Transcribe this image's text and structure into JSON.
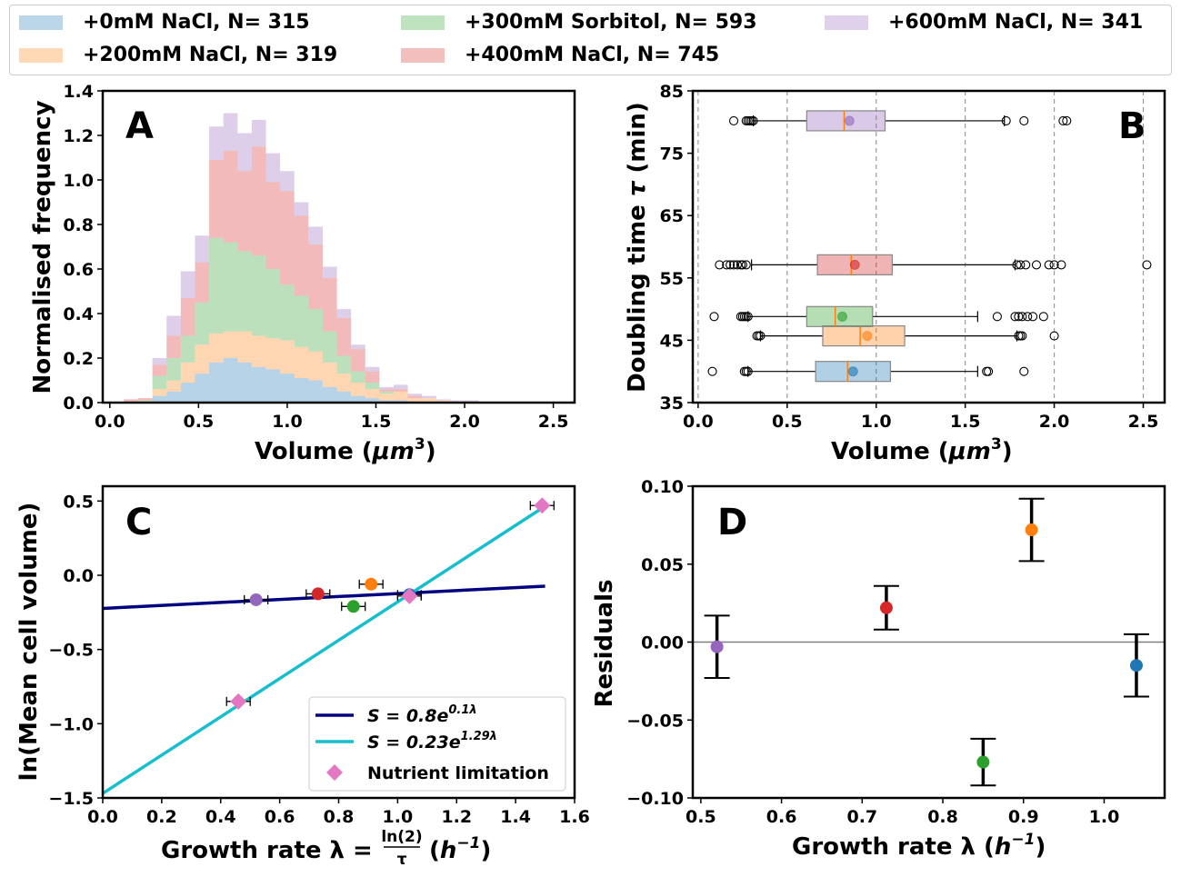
{
  "legend": {
    "entries": [
      {
        "label": "+0mM NaCl, N= 315",
        "color": "#1f77b4"
      },
      {
        "label": "+200mM NaCl, N= 319",
        "color": "#ff7f0e"
      },
      {
        "label": "+300mM Sorbitol, N= 593",
        "color": "#2ca02c"
      },
      {
        "label": "+400mM NaCl, N= 745",
        "color": "#d62728"
      },
      {
        "label": "+600mM NaCl, N= 341",
        "color": "#9467bd"
      }
    ]
  },
  "chart_data": [
    {
      "panel": "A",
      "type": "bar",
      "stacked": true,
      "histtype": "stepfilled",
      "xlabel": "Volume ($\\mu m^3$)",
      "ylabel": "Normalised frequency",
      "xlim": [
        -0.04,
        2.62
      ],
      "ylim": [
        0,
        1.4
      ],
      "xticks": [
        "0.0",
        "0.5",
        "1.0",
        "1.5",
        "2.0",
        "2.5"
      ],
      "yticks": [
        "0.0",
        "0.2",
        "0.4",
        "0.6",
        "0.8",
        "1.0",
        "1.2",
        "1.4"
      ],
      "bin_edges": [
        0.08,
        0.16,
        0.24,
        0.32,
        0.4,
        0.48,
        0.56,
        0.64,
        0.72,
        0.8,
        0.88,
        0.96,
        1.04,
        1.12,
        1.2,
        1.28,
        1.36,
        1.44,
        1.52,
        1.6,
        1.68,
        1.76,
        1.84,
        1.92,
        2.0,
        2.08
      ],
      "series": [
        {
          "name": "+0mM NaCl, N= 315",
          "values": [
            0,
            0,
            0.03,
            0.05,
            0.09,
            0.13,
            0.18,
            0.2,
            0.18,
            0.16,
            0.15,
            0.13,
            0.11,
            0.1,
            0.07,
            0.05,
            0.03,
            0.02,
            0.01,
            0.01,
            0,
            0,
            0,
            0,
            0
          ]
        },
        {
          "name": "+200mM NaCl, N= 319",
          "values": [
            0.005,
            0.005,
            0.03,
            0.05,
            0.09,
            0.13,
            0.13,
            0.12,
            0.14,
            0.14,
            0.14,
            0.15,
            0.14,
            0.13,
            0.11,
            0.08,
            0.06,
            0.04,
            0.03,
            0.04,
            0.02,
            0.02,
            0.01,
            0.005,
            0.005
          ]
        },
        {
          "name": "+300mM Sorbitol, N= 593",
          "values": [
            0,
            0.005,
            0.06,
            0.1,
            0.12,
            0.19,
            0.43,
            0.4,
            0.36,
            0.36,
            0.31,
            0.25,
            0.23,
            0.19,
            0.14,
            0.08,
            0.05,
            0.03,
            0.01,
            0,
            0,
            0,
            0,
            0,
            0
          ]
        },
        {
          "name": "+400mM NaCl, N= 745",
          "values": [
            0.01,
            0.01,
            0.05,
            0.1,
            0.17,
            0.18,
            0.35,
            0.41,
            0.36,
            0.49,
            0.39,
            0.42,
            0.36,
            0.29,
            0.24,
            0.17,
            0.1,
            0.05,
            0.01,
            0.01,
            0.01,
            0,
            0,
            0,
            0
          ]
        },
        {
          "name": "+600mM NaCl, N= 341",
          "values": [
            0,
            0,
            0.03,
            0.09,
            0.12,
            0.12,
            0.15,
            0.17,
            0.17,
            0.12,
            0.13,
            0.09,
            0.06,
            0.08,
            0.05,
            0.04,
            0.02,
            0.02,
            0.01,
            0.02,
            0.01,
            0.01,
            0.005,
            0.005,
            0.005
          ]
        }
      ]
    },
    {
      "panel": "B",
      "type": "box",
      "orientation": "horizontal",
      "xlabel": "Volume ($\\mu m^3$)",
      "ylabel": "Doubling time $\\tau$ (min)",
      "xlim": [
        -0.03,
        2.62
      ],
      "ylim": [
        35,
        85
      ],
      "grid": "x dashed",
      "xticks": [
        "0.0",
        "0.5",
        "1.0",
        "1.5",
        "2.0",
        "2.5"
      ],
      "yticks": [
        "35",
        "45",
        "55",
        "65",
        "75",
        "85"
      ],
      "boxes": [
        {
          "name": "+0mM NaCl, N= 315",
          "y": 40.0,
          "whisker_low": 0.28,
          "q1": 0.66,
          "median": 0.84,
          "q3": 1.08,
          "whisker_high": 1.57,
          "mean": 0.87,
          "fliers": [
            0.08,
            0.26,
            0.27,
            0.28,
            1.62,
            1.63,
            1.83
          ]
        },
        {
          "name": "+200mM NaCl, N= 319",
          "y": 45.7,
          "whisker_low": 0.35,
          "q1": 0.7,
          "median": 0.91,
          "q3": 1.16,
          "whisker_high": 1.79,
          "mean": 0.95,
          "fliers": [
            0.33,
            0.34,
            0.35,
            1.8,
            1.81,
            1.82,
            2.0
          ]
        },
        {
          "name": "+300mM Sorbitol, N= 593",
          "y": 48.8,
          "whisker_low": 0.28,
          "q1": 0.61,
          "median": 0.77,
          "q3": 0.98,
          "whisker_high": 1.57,
          "mean": 0.81,
          "fliers": [
            0.09,
            0.24,
            0.25,
            0.26,
            0.27,
            0.28,
            1.68,
            1.78,
            1.8,
            1.82,
            1.85,
            1.88,
            1.94
          ]
        },
        {
          "name": "+400mM NaCl, N= 745",
          "y": 57.1,
          "whisker_low": 0.3,
          "q1": 0.67,
          "median": 0.86,
          "q3": 1.09,
          "whisker_high": 1.78,
          "mean": 0.88,
          "fliers": [
            0.12,
            0.16,
            0.18,
            0.2,
            0.22,
            0.24,
            0.25,
            0.27,
            1.79,
            1.81,
            1.84,
            1.9,
            1.97,
            2.0,
            2.04,
            2.52
          ]
        },
        {
          "name": "+600mM NaCl, N= 341",
          "y": 80.2,
          "whisker_low": 0.31,
          "q1": 0.61,
          "median": 0.82,
          "q3": 1.05,
          "whisker_high": 1.72,
          "mean": 0.85,
          "fliers": [
            0.2,
            0.27,
            0.28,
            0.29,
            0.3,
            0.31,
            1.73,
            1.83,
            2.05,
            2.07
          ]
        }
      ]
    },
    {
      "panel": "C",
      "type": "scatter",
      "xlabel": "Growth rate λ = ln(2) / τ  (h⁻¹)",
      "ylabel": "ln(Mean cell volume)",
      "xlim": [
        0.0,
        1.6
      ],
      "ylim": [
        -1.5,
        0.6
      ],
      "xticks": [
        "0.0",
        "0.2",
        "0.4",
        "0.6",
        "0.8",
        "1.0",
        "1.2",
        "1.4",
        "1.6"
      ],
      "yticks": [
        "−1.5",
        "−1.0",
        "−0.5",
        "0.0",
        "0.5"
      ],
      "lines": [
        {
          "name": "S = 0.8e^{0.1λ}",
          "legend_label": "S = 0.8e",
          "legend_exp": "0.1λ",
          "a": 0.8,
          "b": 0.1,
          "color": "#000080"
        },
        {
          "name": "S = 0.23e^{1.29λ}",
          "legend_label": "S = 0.23e",
          "legend_exp": "1.29λ",
          "a": 0.23,
          "b": 1.29,
          "color": "#17becf"
        }
      ],
      "points": [
        {
          "x": 0.52,
          "y": -0.165,
          "xerr": 0.04,
          "color": "#9467bd"
        },
        {
          "x": 0.73,
          "y": -0.125,
          "xerr": 0.04,
          "color": "#d62728"
        },
        {
          "x": 0.85,
          "y": -0.21,
          "xerr": 0.04,
          "color": "#2ca02c"
        },
        {
          "x": 0.91,
          "y": -0.06,
          "xerr": 0.04,
          "color": "#ff7f0e"
        },
        {
          "x": 1.04,
          "y": -0.13,
          "xerr": 0.04,
          "color": "#1f77b4"
        }
      ],
      "nutrient_limitation": {
        "label": "Nutrient limitation",
        "color": "#e377c2",
        "points": [
          {
            "x": 0.46,
            "y": -0.85,
            "xerr": 0.04
          },
          {
            "x": 1.04,
            "y": -0.14,
            "xerr": 0.04
          },
          {
            "x": 1.49,
            "y": 0.47,
            "xerr": 0.04
          }
        ]
      },
      "legend_position": "lower right"
    },
    {
      "panel": "D",
      "type": "scatter",
      "xlabel": "Growth rate λ (h⁻¹)",
      "ylabel": "Residuals",
      "xlim": [
        0.49,
        1.075
      ],
      "ylim": [
        -0.1,
        0.1
      ],
      "xticks": [
        "0.5",
        "0.6",
        "0.7",
        "0.8",
        "0.9",
        "1.0"
      ],
      "yticks": [
        "−0.10",
        "−0.05",
        "0.00",
        "0.05",
        "0.10"
      ],
      "zero_line": true,
      "points": [
        {
          "x": 0.52,
          "y": -0.003,
          "yerr": 0.02,
          "color": "#9467bd"
        },
        {
          "x": 0.73,
          "y": 0.022,
          "yerr": 0.014,
          "color": "#d62728"
        },
        {
          "x": 0.85,
          "y": -0.077,
          "yerr": 0.015,
          "color": "#2ca02c"
        },
        {
          "x": 0.91,
          "y": 0.072,
          "yerr": 0.02,
          "color": "#ff7f0e"
        },
        {
          "x": 1.04,
          "y": -0.015,
          "yerr": 0.02,
          "color": "#1f77b4"
        }
      ]
    }
  ],
  "panel_letters": {
    "A": "A",
    "B": "B",
    "C": "C",
    "D": "D"
  },
  "texts": {
    "a_xlabel_pre": "Volume (",
    "a_xlabel_mu": "μm",
    "a_xlabel_sup": "3",
    "a_xlabel_post": ")",
    "a_ylabel": "Normalised frequency",
    "b_ylabel_pre": "Doubling time ",
    "b_ylabel_tau": "τ",
    "b_ylabel_post": " (min)",
    "c_ylabel": "ln(Mean cell volume)",
    "c_xlabel_pre": "Growth rate λ = ",
    "c_xlabel_num": "ln(2)",
    "c_xlabel_den": "τ",
    "c_xlabel_unit": "h",
    "c_xlabel_unit_sup": "−1",
    "d_ylabel": "Residuals",
    "d_xlabel_pre": "Growth rate λ (",
    "d_xlabel_unit": "h",
    "d_xlabel_unit_sup": "−1",
    "d_xlabel_post": ")"
  }
}
